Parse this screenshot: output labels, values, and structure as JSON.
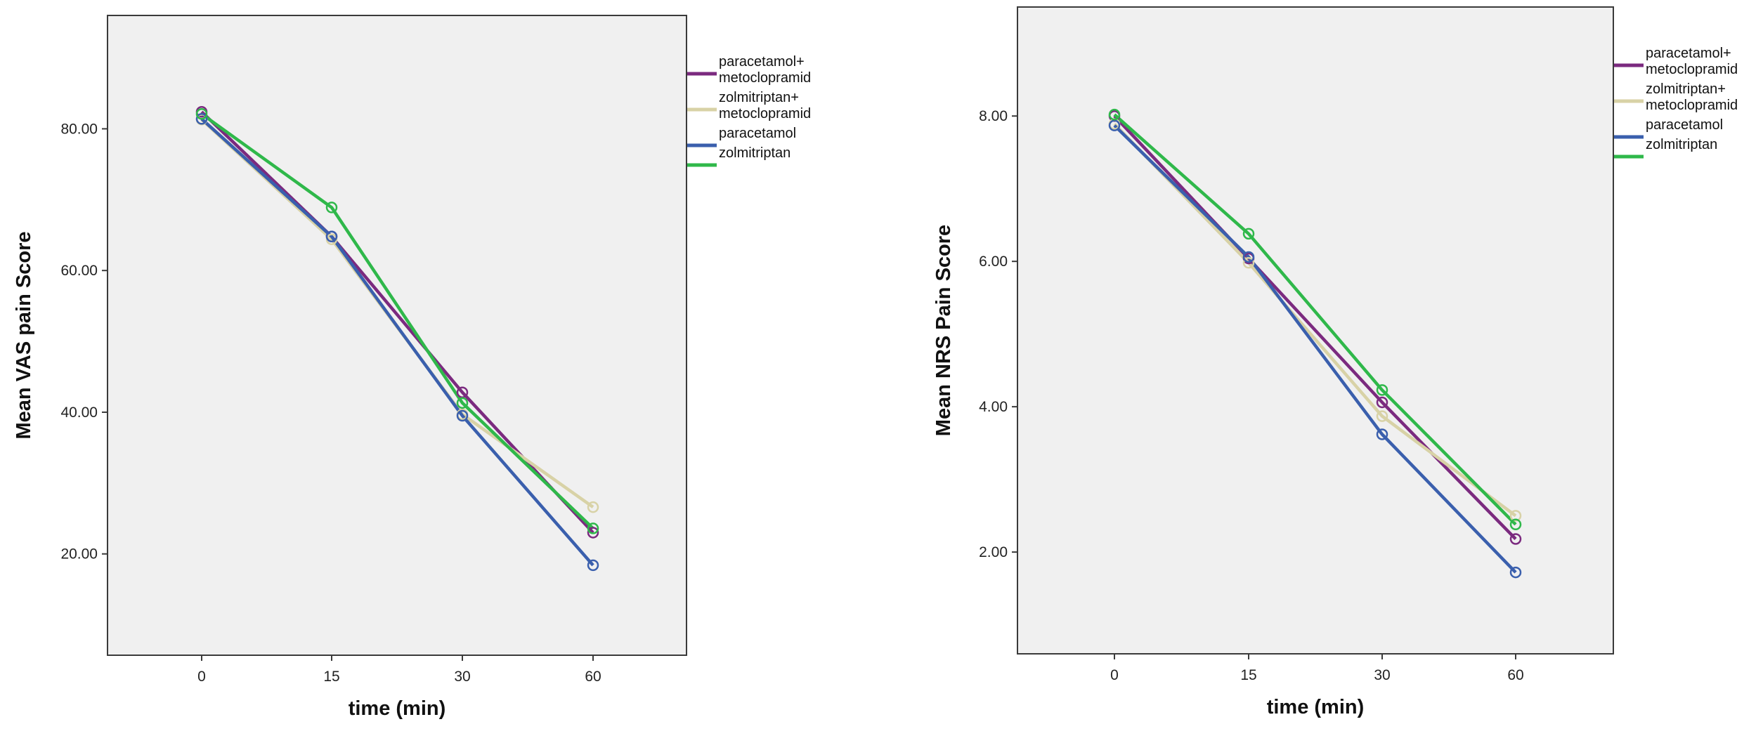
{
  "chart_data": [
    {
      "type": "line",
      "xlabel": "time (min)",
      "ylabel": "Mean VAS pain Score",
      "categories": [
        "0",
        "15",
        "30",
        "60"
      ],
      "yticks": [
        "20.00",
        "40.00",
        "60.00",
        "80.00"
      ],
      "ylim": [
        5.7,
        96
      ],
      "grid": false,
      "legend_position": "right",
      "series": [
        {
          "name": "paracetamol+\nmetoclopramid",
          "color": "#7b2a7f",
          "values": [
            82.4,
            64.8,
            42.8,
            23.0
          ]
        },
        {
          "name": "zolmitriptan+\nmetoclopramid",
          "color": "#d8d2a6",
          "values": [
            81.3,
            64.4,
            39.7,
            26.6
          ]
        },
        {
          "name": "paracetamol",
          "color": "#3a5fad",
          "values": [
            81.4,
            64.8,
            39.5,
            18.4
          ]
        },
        {
          "name": "zolmitriptan",
          "color": "#2fb84a",
          "values": [
            82.1,
            68.9,
            41.3,
            23.6
          ]
        }
      ]
    },
    {
      "type": "line",
      "xlabel": "time (min)",
      "ylabel": "Mean NRS Pain Score",
      "categories": [
        "0",
        "15",
        "30",
        "60"
      ],
      "yticks": [
        "2.00",
        "4.00",
        "6.00",
        "8.00"
      ],
      "ylim": [
        0.6,
        9.5
      ],
      "grid": false,
      "legend_position": "right",
      "series": [
        {
          "name": "paracetamol+\nmetoclopramid",
          "color": "#7b2a7f",
          "values": [
            8.0,
            6.04,
            4.06,
            2.18
          ]
        },
        {
          "name": "zolmitriptan+\nmetoclopramid",
          "color": "#d8d2a6",
          "values": [
            7.89,
            5.98,
            3.87,
            2.5
          ]
        },
        {
          "name": "paracetamol",
          "color": "#3a5fad",
          "values": [
            7.87,
            6.06,
            3.62,
            1.72
          ]
        },
        {
          "name": "zolmitriptan",
          "color": "#2fb84a",
          "values": [
            8.02,
            6.38,
            4.23,
            2.38
          ]
        }
      ]
    }
  ]
}
